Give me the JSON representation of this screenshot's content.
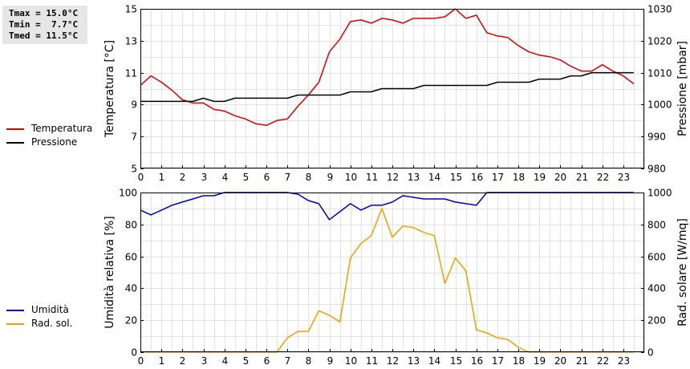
{
  "stats": {
    "tmax": "Tmax = 15.0°C",
    "tmin": "Tmin =  7.7°C",
    "tmed": "Tmed = 11.5°C"
  },
  "legend_top": [
    {
      "label": "Temperatura",
      "color": "#dd0000"
    },
    {
      "label": "Pressione",
      "color": "#000000"
    }
  ],
  "legend_bottom": [
    {
      "label": "Umidità",
      "color": "#0000bb"
    },
    {
      "label": "Rad. sol.",
      "color": "#f0a000"
    }
  ],
  "chart_data": [
    {
      "type": "line",
      "x": [
        0,
        0.5,
        1,
        1.5,
        2,
        2.5,
        3,
        3.5,
        4,
        4.5,
        5,
        5.5,
        6,
        6.5,
        7,
        7.5,
        8,
        8.5,
        9,
        9.5,
        10,
        10.5,
        11,
        11.5,
        12,
        12.5,
        13,
        13.5,
        14,
        14.5,
        15,
        15.5,
        16,
        16.5,
        17,
        17.5,
        18,
        18.5,
        19,
        19.5,
        20,
        20.5,
        21,
        21.5,
        22,
        22.5,
        23,
        23.5
      ],
      "xlim": [
        0,
        24
      ],
      "xticks": [
        0,
        1,
        2,
        3,
        4,
        5,
        6,
        7,
        8,
        9,
        10,
        11,
        12,
        13,
        14,
        15,
        16,
        17,
        18,
        19,
        20,
        21,
        22,
        23
      ],
      "ylabel": "Temperatura [°C]",
      "ylim": [
        5,
        15
      ],
      "yticks": [
        5,
        7,
        9,
        11,
        13,
        15
      ],
      "y2label": "Pressione [mbar]",
      "y2lim": [
        980,
        1030
      ],
      "y2ticks": [
        980,
        990,
        1000,
        1010,
        1020,
        1030
      ],
      "grid": true,
      "legend": "left",
      "series": [
        {
          "name": "Temperatura",
          "color": "#dd0000",
          "axis": "left",
          "values": [
            10.2,
            10.8,
            10.4,
            9.9,
            9.3,
            9.1,
            9.1,
            8.7,
            8.6,
            8.3,
            8.1,
            7.8,
            7.7,
            8.0,
            8.1,
            8.9,
            9.6,
            10.4,
            12.3,
            13.1,
            14.2,
            14.3,
            14.1,
            14.4,
            14.3,
            14.1,
            14.4,
            14.4,
            14.4,
            14.5,
            15.0,
            14.4,
            14.6,
            13.5,
            13.3,
            13.2,
            12.7,
            12.3,
            12.1,
            12.0,
            11.8,
            11.4,
            11.1,
            11.1,
            11.5,
            11.1,
            10.8,
            10.3
          ]
        },
        {
          "name": "Pressione",
          "color": "#000000",
          "axis": "right",
          "values": [
            1001,
            1001,
            1001,
            1001,
            1001,
            1001,
            1002,
            1001,
            1001,
            1002,
            1002,
            1002,
            1002,
            1002,
            1002,
            1003,
            1003,
            1003,
            1003,
            1003,
            1004,
            1004,
            1004,
            1005,
            1005,
            1005,
            1005,
            1006,
            1006,
            1006,
            1006,
            1006,
            1006,
            1006,
            1007,
            1007,
            1007,
            1007,
            1008,
            1008,
            1008,
            1009,
            1009,
            1010,
            1010,
            1010,
            1010,
            1010
          ]
        }
      ]
    },
    {
      "type": "line",
      "x": [
        0,
        0.5,
        1,
        1.5,
        2,
        2.5,
        3,
        3.5,
        4,
        4.5,
        5,
        5.5,
        6,
        6.5,
        7,
        7.5,
        8,
        8.5,
        9,
        9.5,
        10,
        10.5,
        11,
        11.5,
        12,
        12.5,
        13,
        13.5,
        14,
        14.5,
        15,
        15.5,
        16,
        16.5,
        17,
        17.5,
        18,
        18.5,
        19,
        19.5,
        20,
        20.5,
        21,
        21.5,
        22,
        22.5,
        23,
        23.5
      ],
      "xlim": [
        0,
        24
      ],
      "xticks": [
        0,
        1,
        2,
        3,
        4,
        5,
        6,
        7,
        8,
        9,
        10,
        11,
        12,
        13,
        14,
        15,
        16,
        17,
        18,
        19,
        20,
        21,
        22,
        23
      ],
      "ylabel": "Umidità relativa [%]",
      "ylim": [
        0,
        100
      ],
      "yticks": [
        0,
        20,
        40,
        60,
        80,
        100
      ],
      "y2label": "Rad. solare [W/mq]",
      "y2lim": [
        0,
        1000
      ],
      "y2ticks": [
        0,
        200,
        400,
        600,
        800,
        1000
      ],
      "grid": true,
      "legend": "left",
      "series": [
        {
          "name": "Umidità",
          "color": "#0000bb",
          "axis": "left",
          "values": [
            89,
            86,
            89,
            92,
            94,
            96,
            98,
            98,
            100,
            100,
            100,
            100,
            100,
            100,
            100,
            99,
            95,
            93,
            83,
            88,
            93,
            89,
            92,
            92,
            94,
            98,
            97,
            96,
            96,
            96,
            94,
            93,
            92,
            100,
            100,
            100,
            100,
            100,
            100,
            100,
            100,
            100,
            100,
            100,
            100,
            100,
            100,
            100
          ]
        },
        {
          "name": "Rad. sol.",
          "color": "#f0a000",
          "axis": "right",
          "values": [
            0,
            0,
            0,
            0,
            0,
            0,
            0,
            0,
            0,
            0,
            0,
            0,
            0,
            0,
            90,
            130,
            130,
            260,
            230,
            190,
            590,
            680,
            730,
            900,
            720,
            790,
            780,
            750,
            730,
            430,
            590,
            510,
            140,
            120,
            90,
            80,
            30,
            0,
            0,
            0,
            0,
            0,
            0,
            0,
            0,
            0,
            0,
            0
          ]
        }
      ]
    }
  ]
}
